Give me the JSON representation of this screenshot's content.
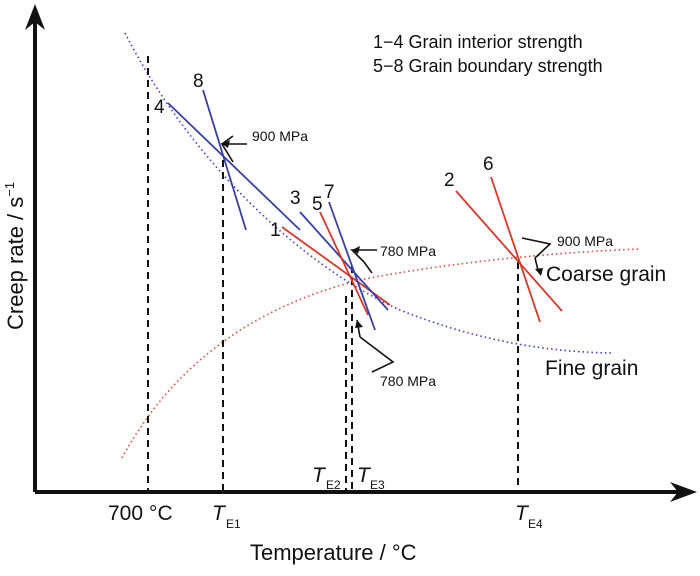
{
  "axes": {
    "x_label": "Temperature / °C",
    "y_label": "Creep rate / s",
    "y_label_sup": "−1"
  },
  "legend": {
    "line1": "1−4 Grain interior strength",
    "line2": "5−8 Grain boundary strength"
  },
  "curves": {
    "coarse": "Coarse grain",
    "fine": "Fine grain"
  },
  "line_numbers": [
    "1",
    "2",
    "3",
    "4",
    "5",
    "6",
    "7",
    "8"
  ],
  "stress_labels": {
    "s900_left": "900 MPa",
    "s780_upper": "780 MPa",
    "s780_lower": "780 MPa",
    "s900_right": "900 MPa"
  },
  "temperatures": {
    "t700": "700",
    "t700_unit": "°C",
    "T": "T",
    "E1": "E1",
    "E2": "E2",
    "E3": "E3",
    "E4": "E4"
  },
  "colors": {
    "red": "#d43a2b",
    "blue": "#3a3fa6",
    "fine_dotted": "#3b3fcf",
    "coarse_dotted": "#d94a3a",
    "axis": "#111111"
  }
}
